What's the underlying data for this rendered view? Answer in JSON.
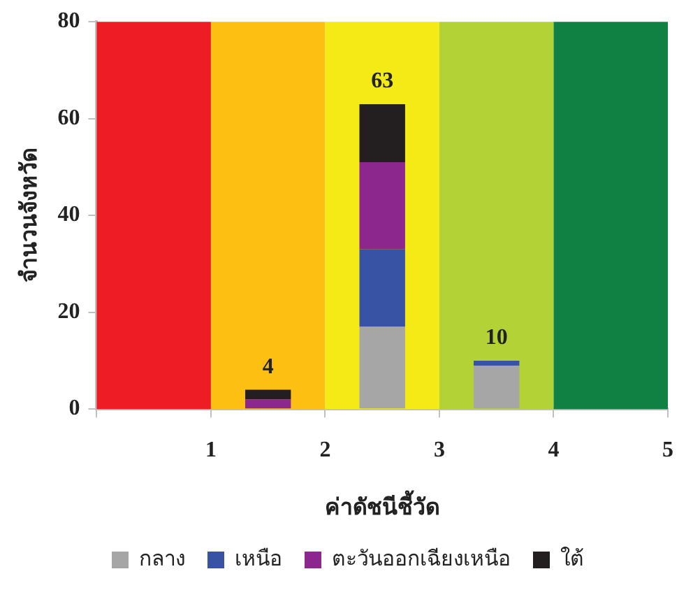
{
  "chart_data": {
    "type": "bar",
    "stacked": true,
    "xlabel": "ค่าดัชนีชี้วัด",
    "ylabel": "จำนวนจังหวัด",
    "x": [
      1.5,
      2.5,
      3.5
    ],
    "series": [
      {
        "name": "กลาง",
        "color": "#a6a6a6",
        "values": [
          0,
          17,
          9
        ]
      },
      {
        "name": "เหนือ",
        "color": "#3953a4",
        "values": [
          0,
          16,
          1
        ]
      },
      {
        "name": "ตะวันออกเฉียงเหนือ",
        "color": "#8b278d",
        "values": [
          2,
          18,
          0
        ]
      },
      {
        "name": "ใต้",
        "color": "#231f20",
        "values": [
          2,
          12,
          0
        ]
      }
    ],
    "totals": [
      "4",
      "63",
      "10"
    ],
    "xlim": [
      0,
      5
    ],
    "xticks": [
      {
        "value": 0,
        "label": null
      },
      1,
      2,
      3,
      4,
      5
    ],
    "ylim": [
      0,
      80
    ],
    "yticks": [
      0,
      20,
      40,
      60,
      80
    ],
    "bands": [
      {
        "axis": "x",
        "from": 0,
        "to": 1,
        "color": "#ee1c25"
      },
      {
        "axis": "x",
        "from": 1,
        "to": 2,
        "color": "#fdbf12"
      },
      {
        "axis": "x",
        "from": 2,
        "to": 3,
        "color": "#f4ea16"
      },
      {
        "axis": "x",
        "from": 3,
        "to": 4,
        "color": "#b2d235"
      },
      {
        "axis": "x",
        "from": 4,
        "to": 5,
        "color": "#108043"
      }
    ],
    "grid": false,
    "legend": "bottom"
  }
}
